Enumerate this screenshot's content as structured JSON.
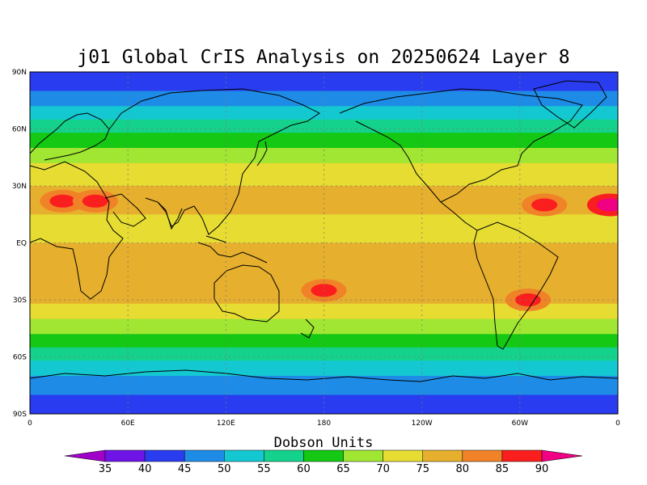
{
  "title": "j01 Global CrIS Analysis on 20250624 Layer 8",
  "colorbar": {
    "title": "Dobson Units",
    "levels": [
      "35",
      "40",
      "45",
      "50",
      "55",
      "60",
      "65",
      "70",
      "75",
      "80",
      "85",
      "90"
    ],
    "colors": [
      "#a000c8",
      "#6e14e6",
      "#2a3cf0",
      "#1e8ce6",
      "#14c8d2",
      "#14d28c",
      "#14c814",
      "#a0e632",
      "#e6dc32",
      "#e6af2d",
      "#f08228",
      "#fa1e1e",
      "#f00082"
    ]
  },
  "map": {
    "x_ticks": [
      "0",
      "60E",
      "120E",
      "180",
      "120W",
      "60W",
      "0"
    ],
    "y_ticks": [
      "90N",
      "60N",
      "30N",
      "EQ",
      "30S",
      "60S",
      "90S"
    ]
  },
  "chart_data": {
    "type": "heatmap",
    "title": "j01 Global CrIS Analysis on 20250624 Layer 8",
    "x_label": "",
    "y_label": "",
    "x_range": [
      0,
      360
    ],
    "y_range": [
      -90,
      90
    ],
    "x_grid_lines": [
      60,
      120,
      180,
      240,
      300
    ],
    "y_grid_lines": [
      60,
      30,
      0,
      -30,
      -60
    ],
    "grid": true,
    "legend": "bottom",
    "units": "Dobson Units",
    "zonal_profile": [
      {
        "lat": 90,
        "value": 40
      },
      {
        "lat": 80,
        "value": 45
      },
      {
        "lat": 72,
        "value": 50
      },
      {
        "lat": 65,
        "value": 55
      },
      {
        "lat": 58,
        "value": 60
      },
      {
        "lat": 50,
        "value": 65
      },
      {
        "lat": 42,
        "value": 70
      },
      {
        "lat": 30,
        "value": 75
      },
      {
        "lat": 15,
        "value": 70
      },
      {
        "lat": 0,
        "value": 75
      },
      {
        "lat": -20,
        "value": 75
      },
      {
        "lat": -32,
        "value": 70
      },
      {
        "lat": -40,
        "value": 65
      },
      {
        "lat": -48,
        "value": 60
      },
      {
        "lat": -55,
        "value": 55
      },
      {
        "lat": -62,
        "value": 50
      },
      {
        "lat": -70,
        "value": 45
      },
      {
        "lat": -80,
        "value": 40
      },
      {
        "lat": -90,
        "value": 40
      }
    ],
    "regional_maxima": [
      {
        "lon": 20,
        "lat": 22,
        "value": 85
      },
      {
        "lon": 40,
        "lat": 22,
        "value": 85
      },
      {
        "lon": 180,
        "lat": -25,
        "value": 85
      },
      {
        "lon": 315,
        "lat": 20,
        "value": 85
      },
      {
        "lon": 355,
        "lat": 20,
        "value": 90
      },
      {
        "lon": 305,
        "lat": -30,
        "value": 85
      }
    ]
  }
}
